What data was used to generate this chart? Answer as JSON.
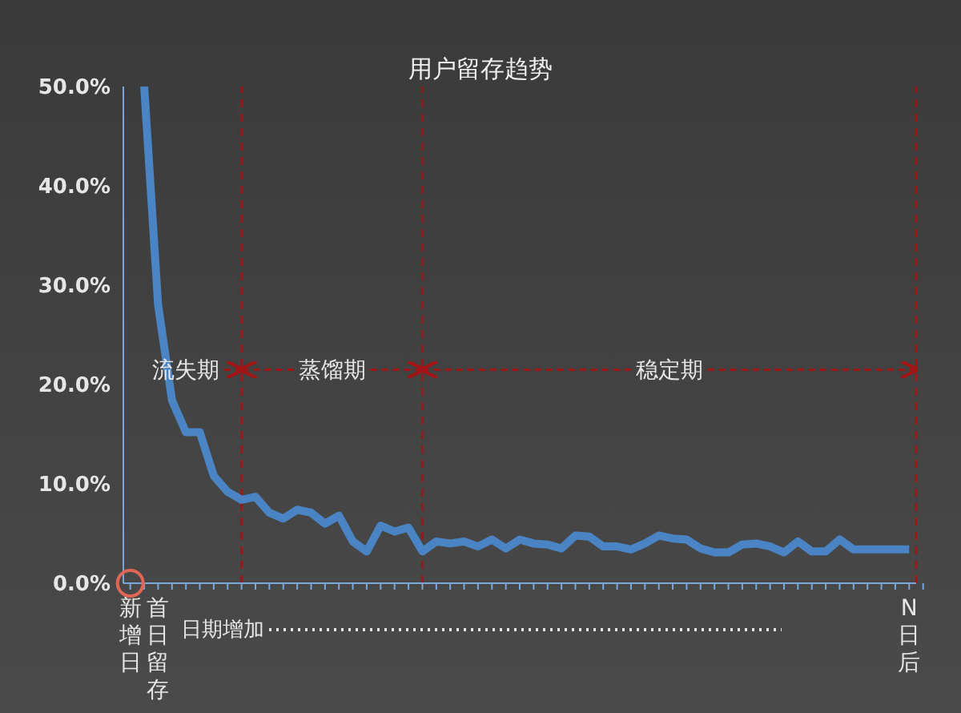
{
  "chart_data": {
    "type": "line",
    "title": "用户留存趋势",
    "categories": [
      "新增日",
      null,
      "首日留存",
      null,
      null,
      null,
      null,
      null,
      null,
      null,
      null,
      null,
      null,
      null,
      null,
      null,
      null,
      null,
      null,
      null,
      null,
      null,
      null,
      null,
      null,
      null,
      null,
      null,
      null,
      null,
      null,
      null,
      null,
      null,
      null,
      null,
      null,
      null,
      null,
      null,
      null,
      null,
      null,
      null,
      null,
      null,
      null,
      null,
      null,
      null,
      null,
      null,
      null,
      null,
      null,
      null,
      "N日后"
    ],
    "series": [
      {
        "color": "#4a84c4",
        "values": [
          null,
          50,
          28,
          18.4,
          15.2,
          15.2,
          10.8,
          9.2,
          8.4,
          8.7,
          7.1,
          6.5,
          7.4,
          7.1,
          6.0,
          6.8,
          4.2,
          3.2,
          5.8,
          5.2,
          5.6,
          3.2,
          4.2,
          4.0,
          4.2,
          3.7,
          4.4,
          3.5,
          4.4,
          4.0,
          3.9,
          3.5,
          4.8,
          4.7,
          3.7,
          3.7,
          3.4,
          4.0,
          4.8,
          4.5,
          4.4,
          3.5,
          3.1,
          3.1,
          3.9,
          4.0,
          3.7,
          3.1,
          4.2,
          3.2,
          3.2,
          4.4,
          3.4,
          3.4,
          3.4,
          3.4,
          3.4
        ]
      }
    ],
    "ylim": [
      0,
      50
    ],
    "yticks": [
      {
        "value": 0,
        "label": "0.0%"
      },
      {
        "value": 10,
        "label": "10.0%"
      },
      {
        "value": 20,
        "label": "20.0%"
      },
      {
        "value": 30,
        "label": "30.0%"
      },
      {
        "value": 40,
        "label": "40.0%"
      },
      {
        "value": 50,
        "label": "50.0%"
      }
    ],
    "annotations": [
      "流失期",
      "蒸馏期",
      "稳定期",
      "日期增加"
    ],
    "marker": "none",
    "line_style": "solid"
  }
}
